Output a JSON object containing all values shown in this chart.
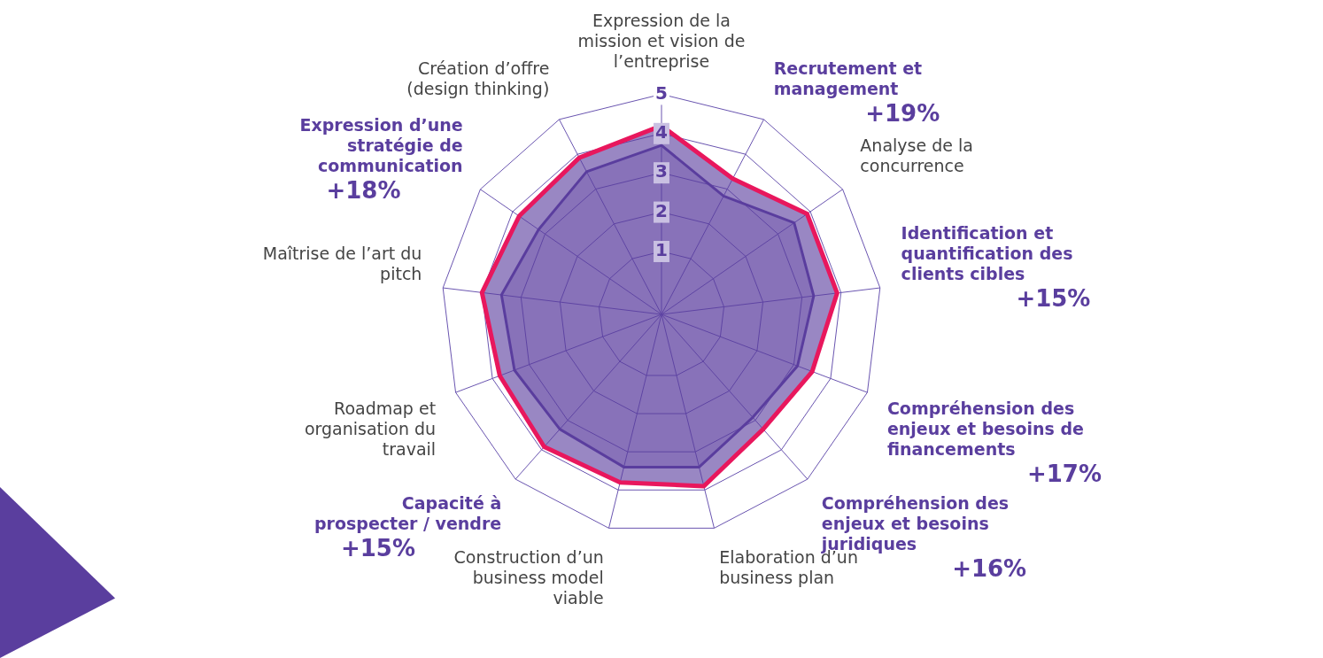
{
  "chart_data": {
    "type": "radar",
    "categories": [
      "Expression de la mission et vision de l’entreprise",
      "Recrutement et management",
      "Analyse de la concurrence",
      "Identification et quantification des clients cibles",
      "Compréhension des enjeux et besoins de financements",
      "Compréhension des enjeux et besoins juridiques",
      "Elaboration d’un business plan",
      "Construction d’un business model viable",
      "Capacité à prospecter / vendre",
      "Roadmap et organisation du travail",
      "Maîtrise de l’art du pitch",
      "Expression d’une stratégie de communication",
      "Création d’offre (design thinking)"
    ],
    "series": [
      {
        "color": "#e8175d",
        "values": [
          4.2,
          3.3,
          3.9,
          3.9,
          3.5,
          3.3,
          3.9,
          3.8,
          3.9,
          3.8,
          4.0,
          3.8,
          3.9
        ]
      },
      {
        "color": "#5a3e9e",
        "values": [
          3.7,
          2.8,
          3.5,
          3.3,
          3.1,
          2.9,
          3.4,
          3.4,
          3.3,
          3.4,
          3.5,
          3.2,
          3.5
        ]
      }
    ],
    "ylim": [
      -0.6,
      5
    ],
    "yticks": [
      1,
      2,
      3,
      4,
      5
    ],
    "grid": true,
    "legend": false,
    "marker": "none",
    "line_style": "solid",
    "annotations": [
      {
        "text": "+19%",
        "x": "Recrutement et management"
      },
      {
        "text": "+15%",
        "x": "Identification et quantification des clients cibles"
      },
      {
        "text": "+17%",
        "x": "Compréhension des enjeux et besoins de financements"
      },
      {
        "text": "+16%",
        "x": "Compréhension des enjeux et besoins juridiques"
      },
      {
        "text": "+15%",
        "x": "Capacité à prospecter / vendre"
      },
      {
        "text": "+18%",
        "x": "Expression d’une stratégie de communication"
      }
    ]
  }
}
